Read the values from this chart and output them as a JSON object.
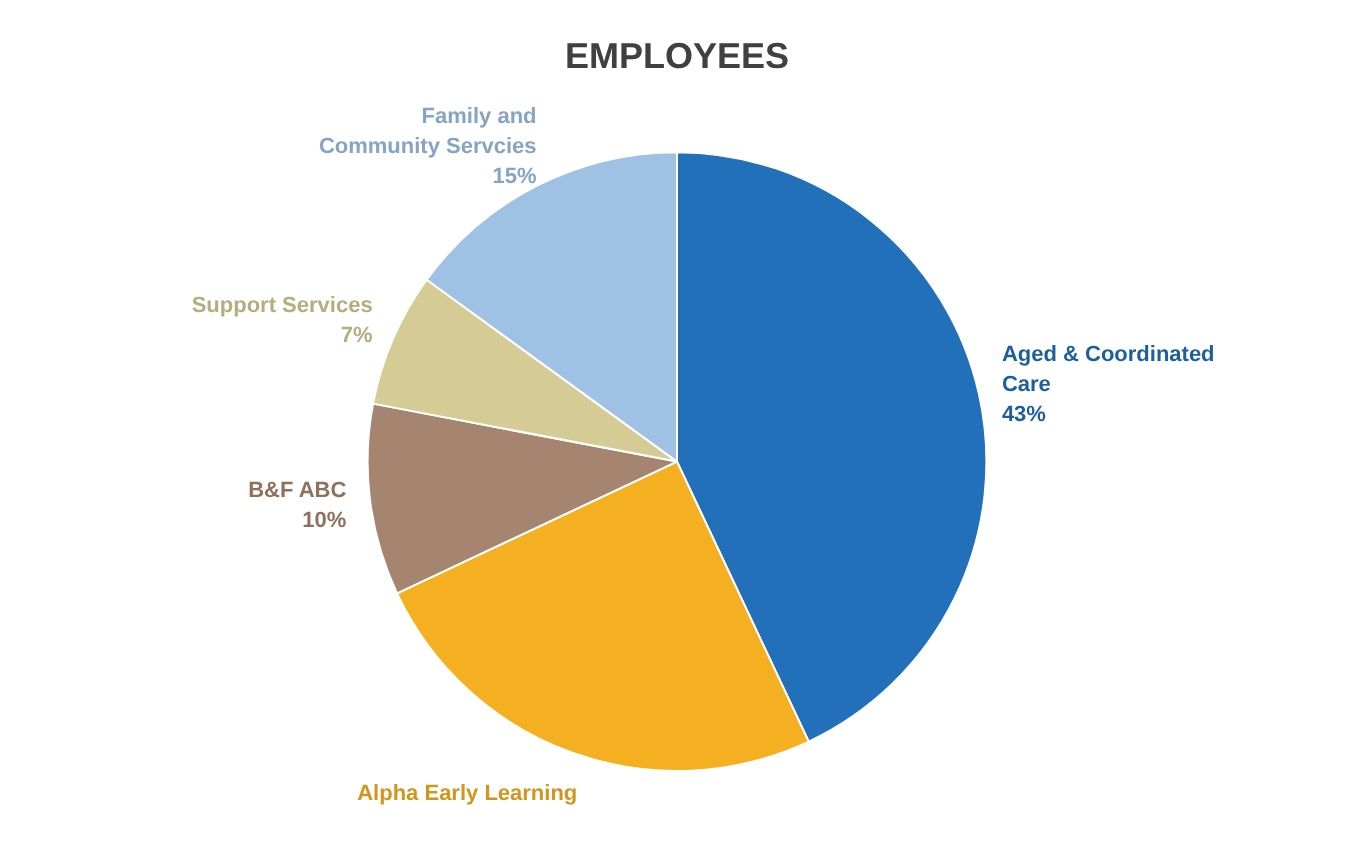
{
  "chart_data": {
    "type": "pie",
    "title": "EMPLOYEES",
    "categories": [
      "Aged & Coordinated Care",
      "Alpha Early Learning",
      "B&F ABC",
      "Support Services",
      "Family and Community Servcies"
    ],
    "values": [
      43,
      25,
      10,
      7,
      15
    ],
    "colors": [
      "#2270b9",
      "#f5b022",
      "#a5856f",
      "#d4cc94",
      "#9fc1e4"
    ],
    "value_labels": [
      "43%",
      null,
      "10%",
      "7%",
      "15%"
    ],
    "legend": false
  }
}
